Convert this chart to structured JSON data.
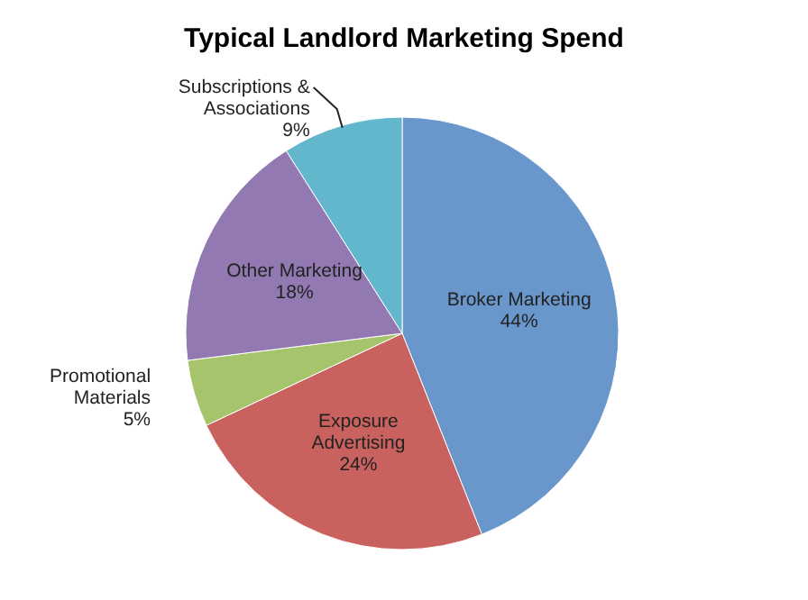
{
  "chart_data": {
    "type": "pie",
    "title": "Typical Landlord Marketing Spend",
    "categories": [
      "Broker Marketing",
      "Exposure Advertising",
      "Promotional Materials",
      "Other Marketing",
      "Subscriptions & Associations"
    ],
    "values": [
      44,
      24,
      5,
      18,
      9
    ],
    "value_labels": [
      "44%",
      "24%",
      "5%",
      "18%",
      "9%"
    ],
    "colors": [
      "#6a97cb",
      "#c9625e",
      "#a6c46b",
      "#9279b1",
      "#62b7cd"
    ]
  }
}
